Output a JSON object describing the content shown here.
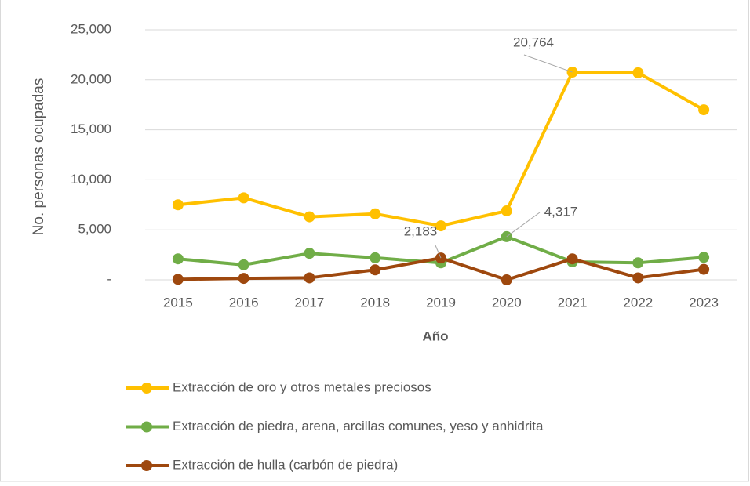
{
  "chart_data": {
    "type": "line",
    "x_label": "Año",
    "y_label": "No. personas ocupadas",
    "categories": [
      "2015",
      "2016",
      "2017",
      "2018",
      "2019",
      "2020",
      "2021",
      "2022",
      "2023"
    ],
    "series": [
      {
        "name": "Extracción de oro y otros metales preciosos",
        "color": "#ffc000",
        "values": [
          7500,
          8200,
          6300,
          6600,
          5400,
          6900,
          20764,
          20700,
          17000
        ],
        "value_labels": [
          null,
          null,
          null,
          null,
          null,
          null,
          "20,764",
          null,
          null
        ]
      },
      {
        "name": "Extracción de piedra, arena, arcillas comunes, yeso y anhidrita",
        "color": "#70ad47",
        "values": [
          2100,
          1500,
          2650,
          2200,
          1700,
          4317,
          1800,
          1700,
          2250
        ],
        "value_labels": [
          null,
          null,
          null,
          null,
          null,
          "4,317",
          null,
          null,
          null
        ]
      },
      {
        "name": "Extracción de hulla (carbón de piedra)",
        "color": "#9e480e",
        "values": [
          50,
          150,
          200,
          1000,
          2183,
          0,
          2100,
          200,
          1050
        ],
        "value_labels": [
          null,
          null,
          null,
          null,
          "2,183",
          null,
          null,
          null,
          null
        ]
      }
    ],
    "ylim": [
      0,
      25000
    ],
    "yticks": [
      {
        "value": 0,
        "label": "-"
      },
      {
        "value": 5000,
        "label": "5,000"
      },
      {
        "value": 10000,
        "label": "10,000"
      },
      {
        "value": 15000,
        "label": "15,000"
      },
      {
        "value": 20000,
        "label": "20,000"
      },
      {
        "value": 25000,
        "label": "25,000"
      }
    ],
    "grid": true,
    "legend": "bottom"
  }
}
